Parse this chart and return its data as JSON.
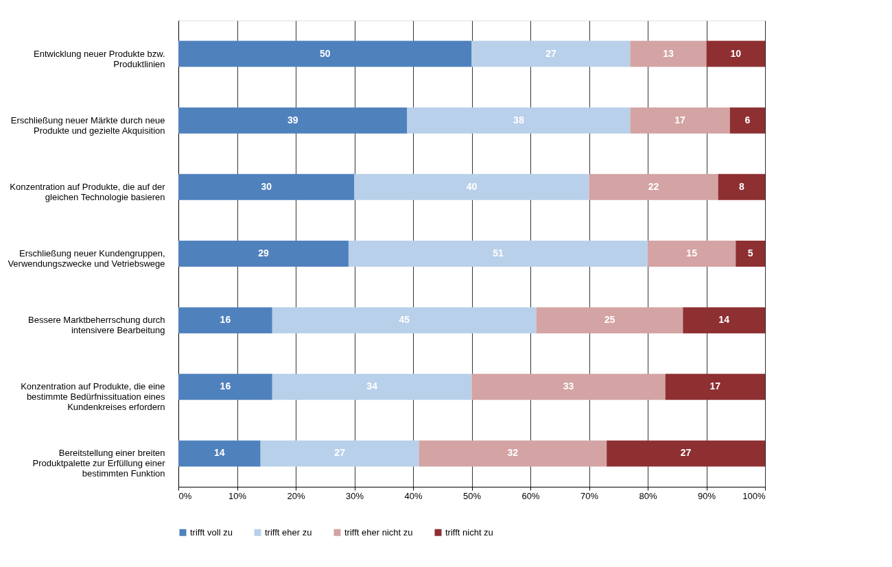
{
  "chart_data": {
    "type": "bar",
    "orientation": "horizontal",
    "stacked": true,
    "data_labels": true,
    "grid": "x",
    "legend": "bottom",
    "categories": [
      "Entwicklung neuer Produkte bzw. Produktlinien",
      "Erschließung neuer Märkte durch neue Produkte und gezielte Akquisition",
      "Konzentration auf Produkte, die auf der gleichen Technologie basieren",
      "Erschließung neuer Kundengruppen, Verwendungszwecke und Vetriebswege",
      "Bessere Marktbeherrschung durch intensivere Bearbeitung",
      "Konzentration auf Produkte, die eine bestimmte Bedürfnissituation eines Kundenkreises erfordern",
      "Bereitstellung einer breiten Produktpalette zur Erfüllung einer bestimmten Funktion"
    ],
    "series": [
      {
        "name": "trifft voll zu",
        "color": "#4f81bd",
        "values": [
          50,
          39,
          30,
          29,
          16,
          16,
          14
        ]
      },
      {
        "name": "trifft eher zu",
        "color": "#b9d0ea",
        "values": [
          27,
          38,
          40,
          51,
          45,
          34,
          27
        ]
      },
      {
        "name": "trifft eher nicht zu",
        "color": "#d4a3a3",
        "values": [
          13,
          17,
          22,
          15,
          25,
          33,
          32
        ]
      },
      {
        "name": "trifft nicht zu",
        "color": "#8e2f32",
        "values": [
          10,
          6,
          8,
          5,
          14,
          17,
          27
        ]
      }
    ],
    "xlim": [
      0,
      100
    ],
    "xticks": [
      {
        "value": 0,
        "label": "0%"
      },
      {
        "value": 10,
        "label": "10%"
      },
      {
        "value": 20,
        "label": "20%"
      },
      {
        "value": 30,
        "label": "30%"
      },
      {
        "value": 40,
        "label": "40%"
      },
      {
        "value": 50,
        "label": "50%"
      },
      {
        "value": 60,
        "label": "60%"
      },
      {
        "value": 70,
        "label": "70%"
      },
      {
        "value": 80,
        "label": "80%"
      },
      {
        "value": 90,
        "label": "90%"
      },
      {
        "value": 100,
        "label": "100%"
      }
    ]
  }
}
